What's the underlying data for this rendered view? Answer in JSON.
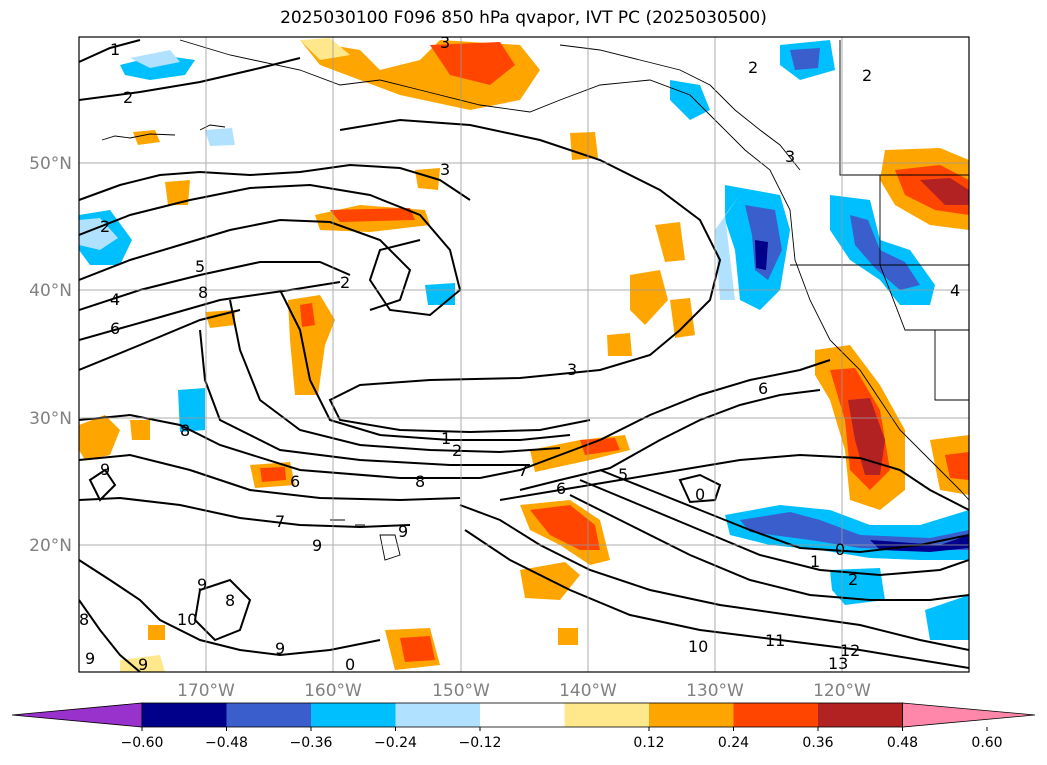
{
  "title": "2025030100 F096 850 hPa qvapor, IVT PC (2025030500)",
  "map": {
    "lon_ticks": [
      "170°W",
      "160°W",
      "150°W",
      "140°W",
      "130°W",
      "120°W"
    ],
    "lat_ticks": [
      "50°N",
      "40°N",
      "30°N",
      "20°N"
    ],
    "grid": true,
    "contour_labels": [
      "1",
      "2",
      "3",
      "5",
      "4",
      "6",
      "8",
      "2",
      "3",
      "3",
      "1",
      "2",
      "7",
      "6",
      "5",
      "6",
      "8",
      "7",
      "9",
      "9",
      "9",
      "8",
      "10",
      "9",
      "0",
      "1",
      "2",
      "0",
      "6",
      "10",
      "11",
      "12",
      "13",
      "2",
      "2",
      "2",
      "3",
      "4",
      "9",
      "8",
      "9",
      "8",
      "9",
      "0"
    ]
  },
  "colorbar": {
    "tick_labels": [
      "−0.60",
      "−0.48",
      "−0.36",
      "−0.24",
      "−0.12",
      "0.12",
      "0.24",
      "0.36",
      "0.48",
      "0.60"
    ],
    "colors": [
      "#9932cc",
      "#00008b",
      "#3a5fcd",
      "#00bfff",
      "#b0e2ff",
      "#ffffff",
      "#ffe88c",
      "#ffa500",
      "#ff4500",
      "#b22222",
      "#ff88aa"
    ],
    "extend": "both"
  }
}
